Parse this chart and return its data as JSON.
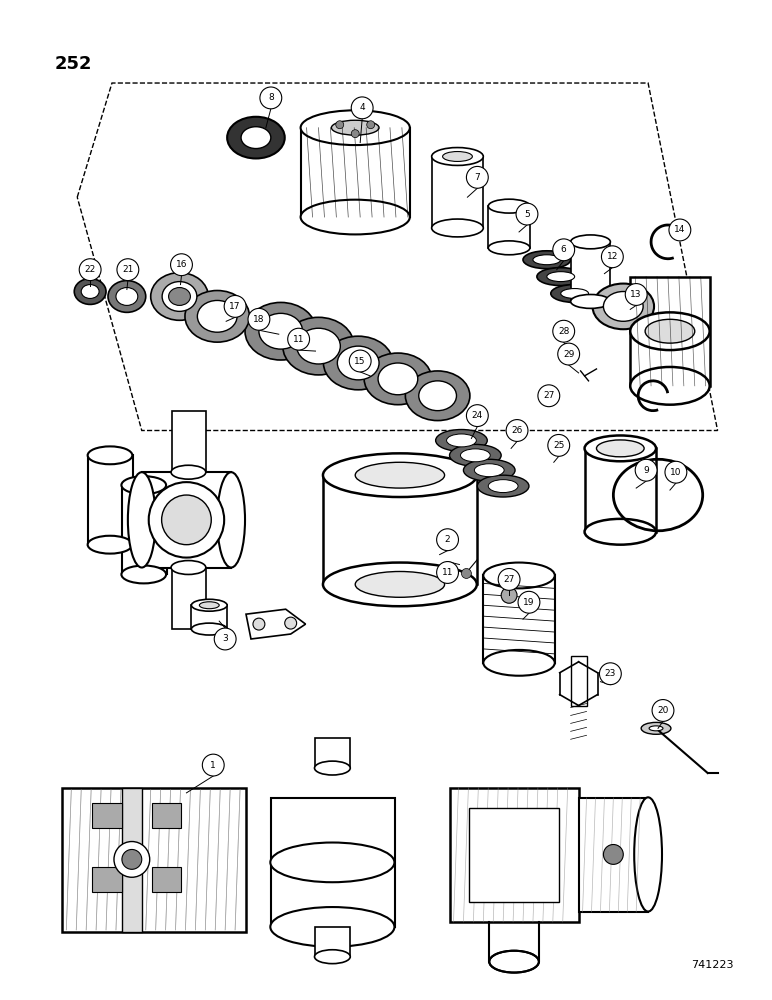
{
  "page_number": "252",
  "catalog_number": "741223",
  "background_color": "#ffffff",
  "line_color": "#000000",
  "fig_width": 7.72,
  "fig_height": 10.0,
  "dpi": 100
}
